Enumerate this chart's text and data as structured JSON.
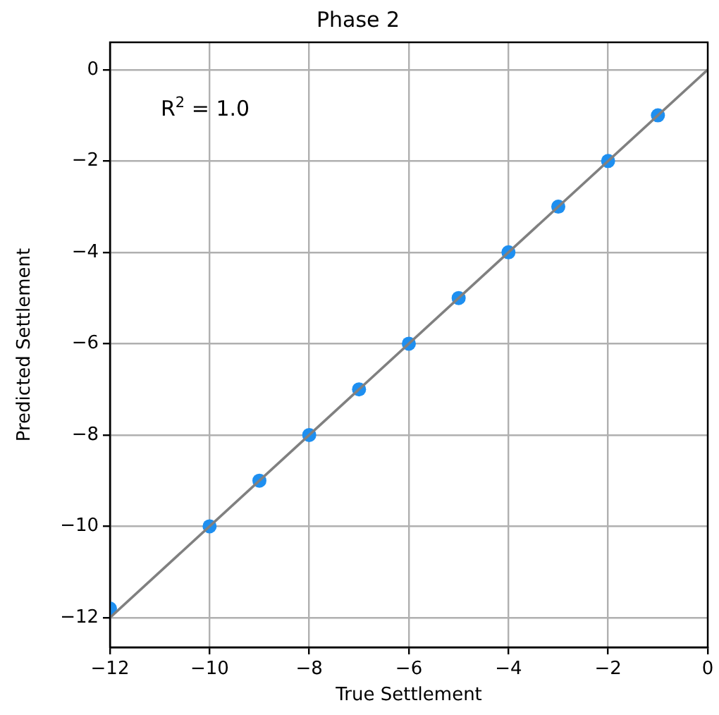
{
  "chart_data": {
    "type": "scatter",
    "title": "Phase 2",
    "xlabel": "True Settlement",
    "ylabel": "Predicted Settlement",
    "annotations": [
      "R$^{2}$ = 1.0"
    ],
    "series": [
      {
        "type": "line",
        "color": "#808080",
        "x": [
          -12,
          0
        ],
        "values": [
          -12,
          0
        ],
        "marker": "none"
      },
      {
        "type": "scatter",
        "color": "#1e8ff0",
        "x": [
          -12,
          -10,
          -9,
          -8,
          -7,
          -6,
          -5,
          -4,
          -3,
          -2,
          -1
        ],
        "values": [
          -11.8,
          -10,
          -9,
          -8,
          -7,
          -6,
          -5,
          -4,
          -3,
          -2,
          -1
        ],
        "marker": "circle"
      }
    ],
    "xlim": [
      -12,
      0
    ],
    "xticks": [
      -12,
      -10,
      -8,
      -6,
      -4,
      -2,
      0
    ],
    "ylim": [
      -12.65,
      0.6
    ],
    "yticks": [
      -12,
      -10,
      -8,
      -6,
      -4,
      -2,
      0
    ],
    "grid": true
  }
}
